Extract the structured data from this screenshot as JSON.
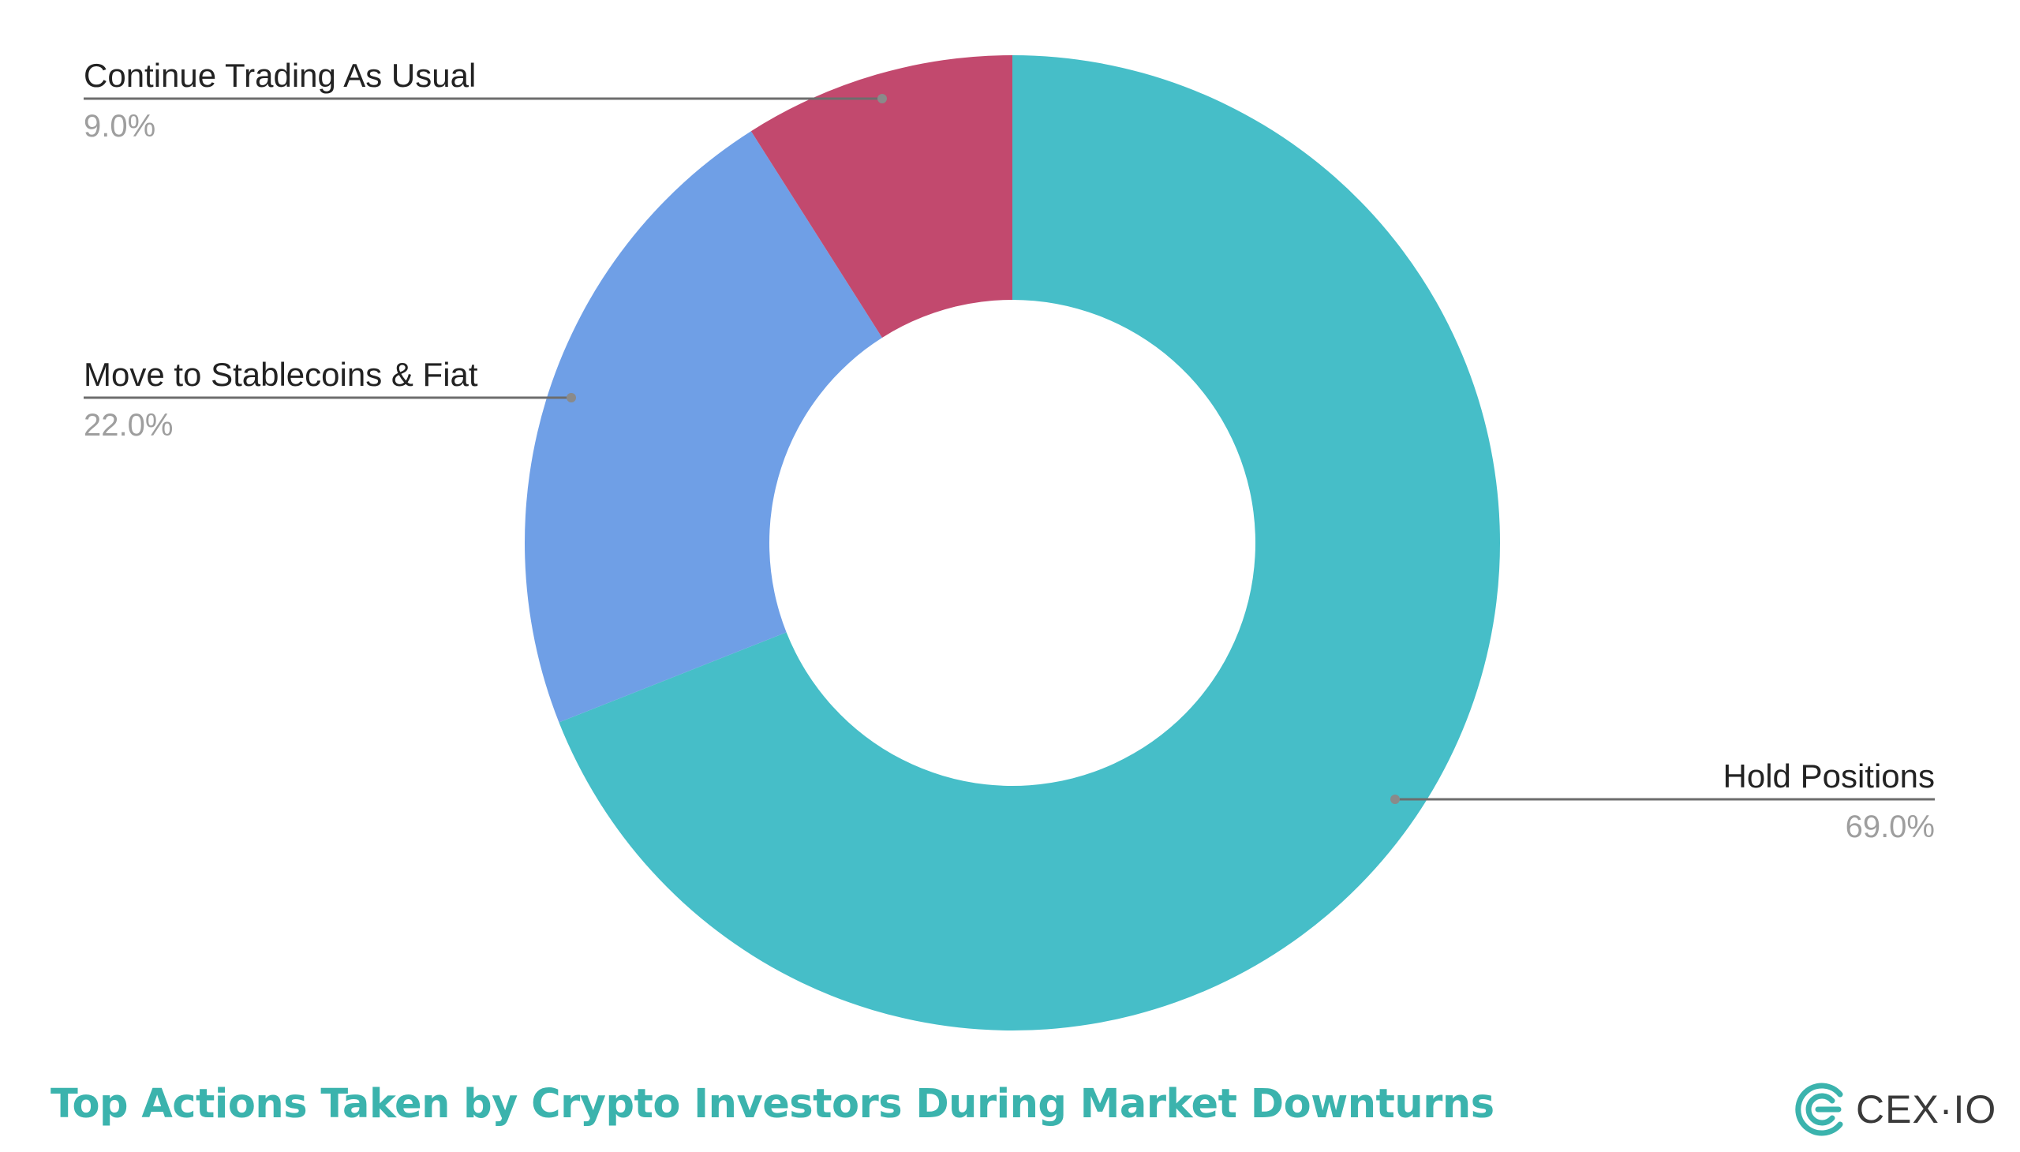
{
  "chart_data": {
    "type": "pie",
    "donut": true,
    "title": "Top Actions Taken by Crypto Investors During Market Downturns",
    "legend": "none",
    "slices": [
      {
        "label": "Hold Positions",
        "value": 69.0,
        "value_label": "69.0%",
        "color": "#46bec8"
      },
      {
        "label": "Move to Stablecoins & Fiat",
        "value": 22.0,
        "value_label": "22.0%",
        "color": "#6f9fe6"
      },
      {
        "label": "Continue Trading As Usual",
        "value": 9.0,
        "value_label": "9.0%",
        "color": "#c2496e"
      }
    ]
  },
  "footer": {
    "title": "Top Actions Taken by Crypto Investors During Market Downturns",
    "title_color": "#3bb3ad"
  },
  "logo": {
    "text": "CEX·IO",
    "icon": "cex-io-logo-icon",
    "color": "#3bb3ad"
  }
}
